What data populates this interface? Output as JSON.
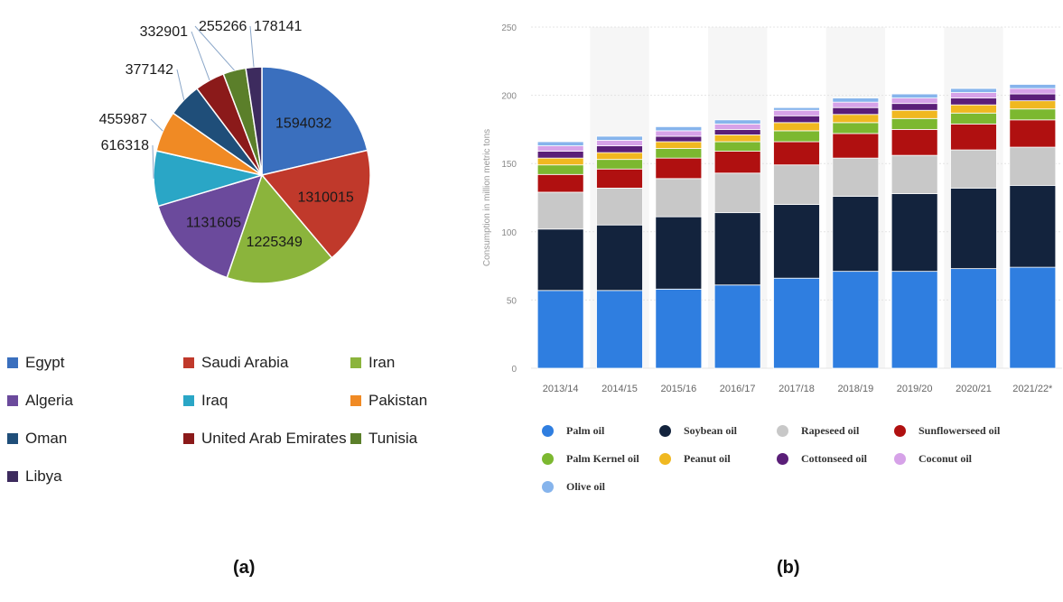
{
  "chart_data": [
    {
      "type": "pie",
      "categories": [
        "Egypt",
        "Saudi Arabia",
        "Iran",
        "Algeria",
        "Iraq",
        "Pakistan",
        "Oman",
        "United Arab Emirates",
        "Tunisia",
        "Libya"
      ],
      "values": [
        1594032,
        1310015,
        1225349,
        1131605,
        616318,
        455987,
        377142,
        332901,
        255266,
        178141
      ],
      "value_labels": [
        "1594032",
        "1310015",
        "1225349",
        "1131605",
        "616318",
        "455987",
        "377142",
        "332901",
        "255266",
        "178141"
      ],
      "colors": [
        "#3a6fbe",
        "#c0392b",
        "#8bb43c",
        "#6b4a9c",
        "#2aa6c6",
        "#f08a24",
        "#1f4e79",
        "#8b1a1a",
        "#5b7f2a",
        "#3d2b5e"
      ],
      "legend_position": "bottom",
      "panel_label": "(a)"
    },
    {
      "type": "bar",
      "stacked": true,
      "categories": [
        "2013/14",
        "2014/15",
        "2015/16",
        "2016/17",
        "2017/18",
        "2018/19",
        "2019/20",
        "2020/21",
        "2021/22*"
      ],
      "ylabel": "Consumption in million metric tons",
      "ylim": [
        0,
        250
      ],
      "yticks": [
        "0",
        "50",
        "100",
        "150",
        "200",
        "250"
      ],
      "grid": true,
      "legend_position": "bottom",
      "panel_label": "(b)",
      "series": [
        {
          "name": "Palm oil",
          "color": "#2f7ee0",
          "values": [
            57,
            57,
            58,
            61,
            66,
            71,
            71,
            73,
            74
          ]
        },
        {
          "name": "Soybean oil",
          "color": "#13233d",
          "values": [
            45,
            48,
            53,
            53,
            54,
            55,
            57,
            59,
            60
          ]
        },
        {
          "name": "Rapeseed oil",
          "color": "#c8c8c8",
          "values": [
            27,
            27,
            28,
            29,
            29,
            28,
            28,
            28,
            28
          ]
        },
        {
          "name": "Sunflowerseed oil",
          "color": "#b01010",
          "values": [
            13,
            14,
            15,
            16,
            17,
            18,
            19,
            19,
            20
          ]
        },
        {
          "name": "Palm Kernel oil",
          "color": "#7cb830",
          "values": [
            7,
            7,
            7,
            7,
            8,
            8,
            8,
            8,
            8
          ]
        },
        {
          "name": "Peanut oil",
          "color": "#f0b820",
          "values": [
            5,
            5,
            5,
            5,
            6,
            6,
            6,
            6,
            6
          ]
        },
        {
          "name": "Cottonseed oil",
          "color": "#5a1e78",
          "values": [
            5,
            5,
            4,
            4,
            5,
            5,
            5,
            5,
            5
          ]
        },
        {
          "name": "Coconut oil",
          "color": "#d6a2e8",
          "values": [
            4,
            4,
            4,
            4,
            4,
            4,
            4,
            4,
            4
          ]
        },
        {
          "name": "Olive oil",
          "color": "#86b4ec",
          "values": [
            3,
            3,
            3,
            3,
            2,
            3,
            3,
            3,
            3
          ]
        }
      ]
    }
  ]
}
